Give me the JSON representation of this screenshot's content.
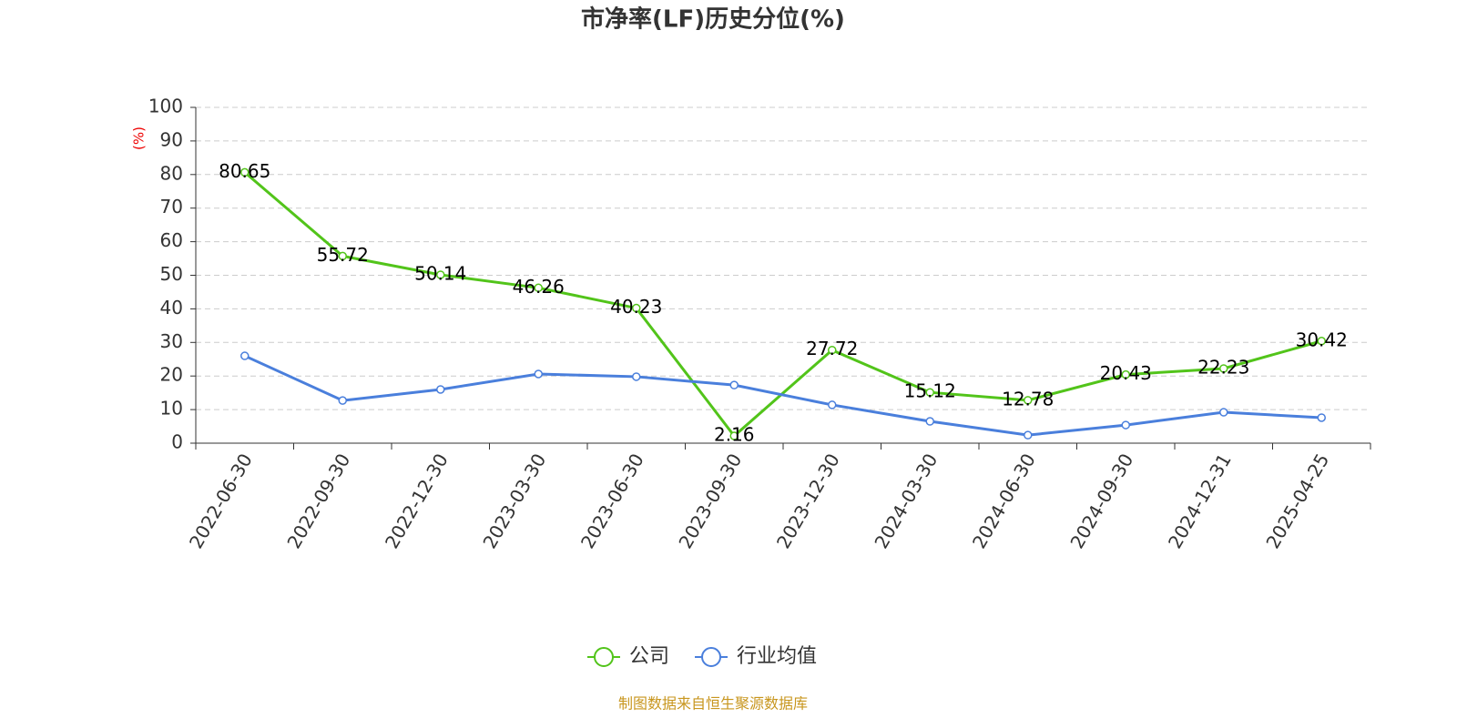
{
  "chart_data": {
    "type": "line",
    "title": "市净率(LF)历史分位(%)",
    "y_label": "(%)",
    "source": "制图数据来自恒生聚源数据库",
    "categories": [
      "2022-06-30",
      "2022-09-30",
      "2022-12-30",
      "2023-03-30",
      "2023-06-30",
      "2023-09-30",
      "2023-12-30",
      "2024-03-30",
      "2024-06-30",
      "2024-09-30",
      "2024-12-31",
      "2025-04-25"
    ],
    "series": [
      {
        "name": "公司",
        "color": "#52c41a",
        "values": [
          80.65,
          55.72,
          50.14,
          46.26,
          40.23,
          2.16,
          27.72,
          15.12,
          12.78,
          20.43,
          22.23,
          30.42
        ],
        "labels": true
      },
      {
        "name": "行业均值",
        "color": "#4a7fdc",
        "values": [
          26.0,
          12.7,
          16.0,
          20.6,
          19.8,
          17.3,
          11.4,
          6.5,
          2.4,
          5.4,
          9.2,
          7.6
        ]
      }
    ],
    "ylim": [
      0,
      100
    ],
    "yticks": [
      0,
      10,
      20,
      30,
      40,
      50,
      60,
      70,
      80,
      90,
      100
    ],
    "grid": true,
    "legend": "bottom"
  }
}
